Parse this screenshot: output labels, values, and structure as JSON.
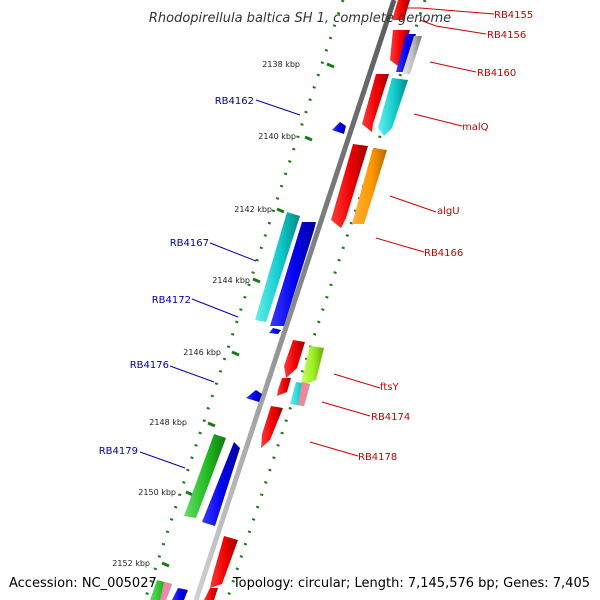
{
  "map": {
    "title": "Rhodopirellula baltica SH 1, complete genome",
    "accession": "Accession: NC_005027",
    "summary": "Topology: circular; Length: 7,145,576 bp; Genes: 7,405"
  },
  "colors": {
    "backbone": "#808080",
    "tick": "#1a7a1a",
    "forward_label": "#cc0000",
    "reverse_label": "#0000aa"
  },
  "kbp_ticks": [
    {
      "name": "kbp-2138",
      "label": "2138 kbp"
    },
    {
      "name": "kbp-2140",
      "label": "2140 kbp"
    },
    {
      "name": "kbp-2142",
      "label": "2142 kbp"
    },
    {
      "name": "kbp-2144",
      "label": "2144 kbp"
    },
    {
      "name": "kbp-2146",
      "label": "2146 kbp"
    },
    {
      "name": "kbp-2148",
      "label": "2148 kbp"
    },
    {
      "name": "kbp-2150",
      "label": "2150 kbp"
    },
    {
      "name": "kbp-2152",
      "label": "2152 kbp"
    }
  ],
  "gene_labels": [
    {
      "name": "gene-label-rb4155",
      "text": "RB4155",
      "strand": "forward"
    },
    {
      "name": "gene-label-rb4156",
      "text": "RB4156",
      "strand": "forward"
    },
    {
      "name": "gene-label-rb4160",
      "text": "RB4160",
      "strand": "forward"
    },
    {
      "name": "gene-label-malq",
      "text": "malQ",
      "strand": "forward"
    },
    {
      "name": "gene-label-algu",
      "text": "algU",
      "strand": "forward"
    },
    {
      "name": "gene-label-rb4166",
      "text": "RB4166",
      "strand": "forward"
    },
    {
      "name": "gene-label-ftsy",
      "text": "ftsY",
      "strand": "forward"
    },
    {
      "name": "gene-label-rb4174",
      "text": "RB4174",
      "strand": "forward"
    },
    {
      "name": "gene-label-rb4178",
      "text": "RB4178",
      "strand": "forward"
    },
    {
      "name": "gene-label-rb4162",
      "text": "RB4162",
      "strand": "reverse"
    },
    {
      "name": "gene-label-rb4167",
      "text": "RB4167",
      "strand": "reverse"
    },
    {
      "name": "gene-label-rb4172",
      "text": "RB4172",
      "strand": "reverse"
    },
    {
      "name": "gene-label-rb4176",
      "text": "RB4176",
      "strand": "reverse"
    },
    {
      "name": "gene-label-rb4179",
      "text": "RB4179",
      "strand": "reverse"
    }
  ]
}
